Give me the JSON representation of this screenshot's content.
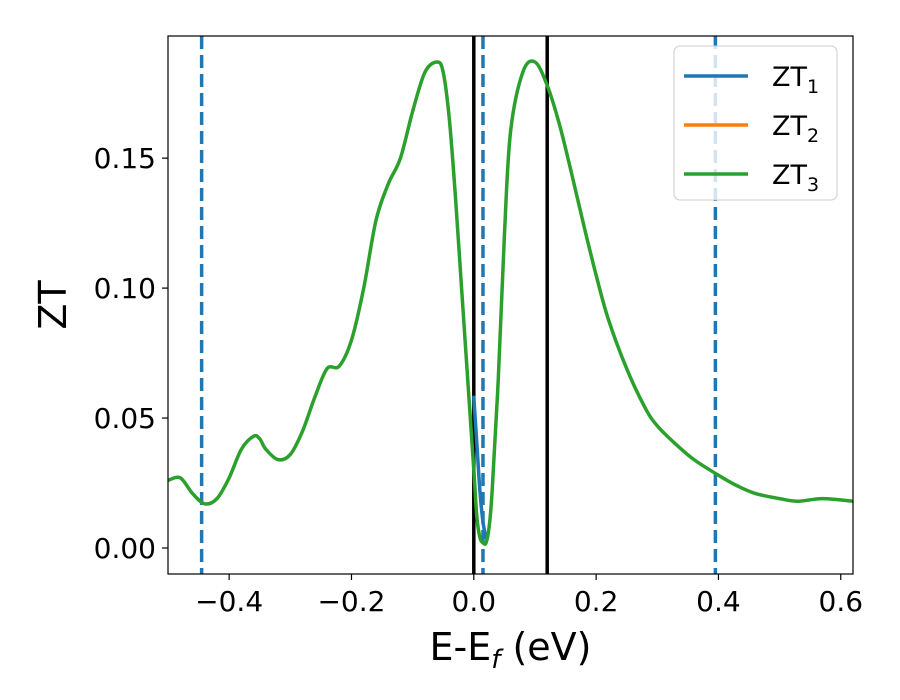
{
  "chart_data": {
    "type": "line",
    "xlabel": "E-E",
    "xlabel_sub": "f",
    "xlabel_unit": " (eV)",
    "ylabel": "ZT",
    "xlim": [
      -0.5,
      0.62
    ],
    "ylim": [
      -0.01,
      0.197
    ],
    "xticks": [
      -0.4,
      -0.2,
      0.0,
      0.2,
      0.4,
      0.6
    ],
    "xtick_labels": [
      "−0.4",
      "−0.2",
      "0.0",
      "0.2",
      "0.4",
      "0.6"
    ],
    "yticks": [
      0.0,
      0.05,
      0.1,
      0.15
    ],
    "ytick_labels": [
      "0.00",
      "0.05",
      "0.10",
      "0.15"
    ],
    "grid": false,
    "legend_position": "top-right",
    "series": [
      {
        "name": "ZT",
        "name_sub": "1",
        "color": "#1f77b4",
        "x": [
          0.0,
          0.005,
          0.01,
          0.015,
          0.02
        ],
        "y": [
          0.058,
          0.04,
          0.022,
          0.01,
          0.004
        ]
      },
      {
        "name": "ZT",
        "name_sub": "2",
        "color": "#ff7f0e",
        "x": [],
        "y": []
      },
      {
        "name": "ZT",
        "name_sub": "3",
        "color": "#2ca02c",
        "x": [
          -0.5,
          -0.48,
          -0.46,
          -0.44,
          -0.42,
          -0.4,
          -0.38,
          -0.36,
          -0.35,
          -0.34,
          -0.32,
          -0.3,
          -0.28,
          -0.26,
          -0.24,
          -0.22,
          -0.2,
          -0.18,
          -0.16,
          -0.14,
          -0.12,
          -0.1,
          -0.08,
          -0.06,
          -0.05,
          -0.04,
          -0.03,
          -0.02,
          -0.01,
          0.0,
          0.005,
          0.01,
          0.015,
          0.02,
          0.025,
          0.03,
          0.04,
          0.05,
          0.06,
          0.08,
          0.1,
          0.12,
          0.14,
          0.16,
          0.18,
          0.2,
          0.22,
          0.25,
          0.28,
          0.3,
          0.33,
          0.36,
          0.4,
          0.43,
          0.46,
          0.5,
          0.53,
          0.57,
          0.62
        ],
        "y": [
          0.026,
          0.027,
          0.021,
          0.017,
          0.019,
          0.027,
          0.038,
          0.043,
          0.042,
          0.038,
          0.034,
          0.036,
          0.045,
          0.058,
          0.069,
          0.07,
          0.08,
          0.1,
          0.126,
          0.14,
          0.15,
          0.168,
          0.183,
          0.187,
          0.183,
          0.165,
          0.135,
          0.1,
          0.065,
          0.03,
          0.012,
          0.004,
          0.002,
          0.002,
          0.008,
          0.022,
          0.065,
          0.12,
          0.16,
          0.183,
          0.187,
          0.178,
          0.163,
          0.144,
          0.124,
          0.105,
          0.088,
          0.069,
          0.054,
          0.047,
          0.04,
          0.034,
          0.028,
          0.024,
          0.021,
          0.019,
          0.018,
          0.019,
          0.018
        ]
      }
    ],
    "vlines": [
      {
        "x": -0.445,
        "style": "dashed",
        "color": "#1f77b4"
      },
      {
        "x": 0.015,
        "style": "dashed",
        "color": "#1f77b4"
      },
      {
        "x": 0.395,
        "style": "dashed",
        "color": "#1f77b4"
      },
      {
        "x": 0.0,
        "style": "solid",
        "color": "#000000"
      },
      {
        "x": 0.12,
        "style": "solid",
        "color": "#000000"
      }
    ]
  }
}
